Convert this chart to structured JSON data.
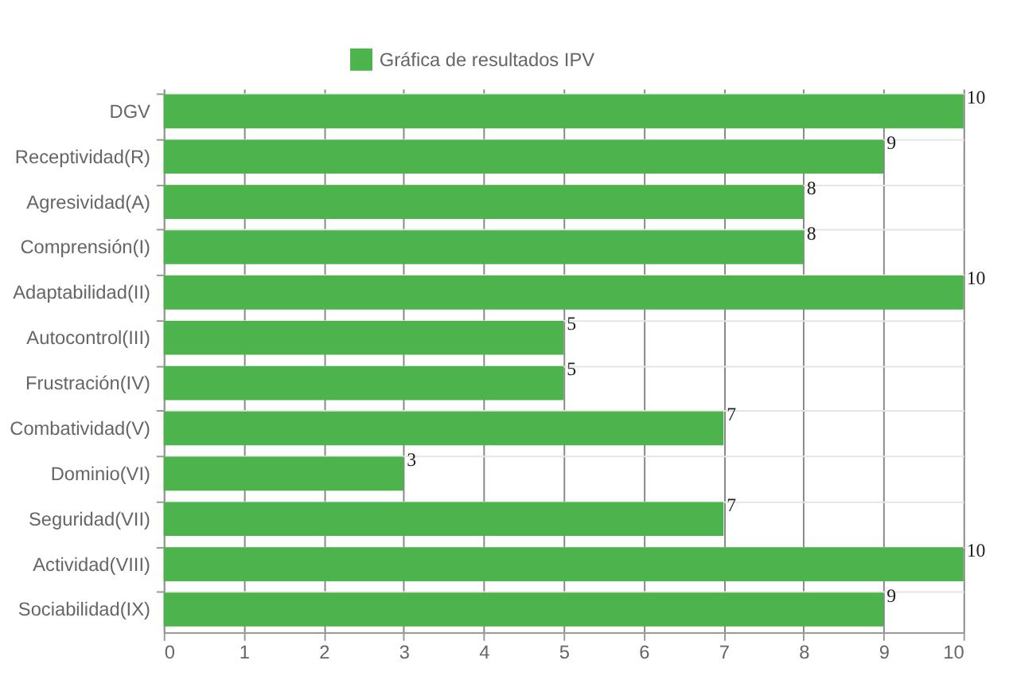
{
  "chart_data": {
    "type": "bar",
    "orientation": "horizontal",
    "categories": [
      "DGV",
      "Receptividad(R)",
      "Agresividad(A)",
      "Comprensión(I)",
      "Adaptabilidad(II)",
      "Autocontrol(III)",
      "Frustración(IV)",
      "Combatividad(V)",
      "Dominio(VI)",
      "Seguridad(VII)",
      "Actividad(VIII)",
      "Sociabilidad(IX)"
    ],
    "series": [
      {
        "name": "Gráfica de resultados IPV",
        "color": "#4db34d",
        "values": [
          10,
          9,
          8,
          8,
          10,
          5,
          5,
          7,
          3,
          7,
          10,
          9
        ]
      }
    ],
    "xlim": [
      0,
      10
    ],
    "xticks": [
      0,
      1,
      2,
      3,
      4,
      5,
      6,
      7,
      8,
      9,
      10
    ],
    "grid": true,
    "legend": "top",
    "data_labels": true
  }
}
